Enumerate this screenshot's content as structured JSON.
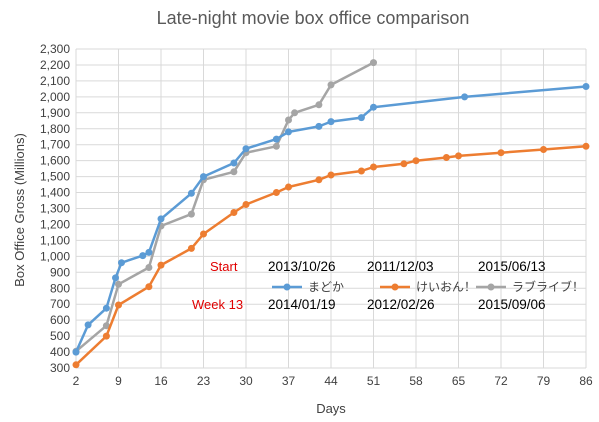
{
  "chart_data": {
    "type": "line",
    "title": "Late-night movie box office comparison",
    "xlabel": "Days",
    "ylabel": "Box Office Gross (Millions)",
    "xlim": [
      2,
      86
    ],
    "ylim": [
      300,
      2300
    ],
    "x_ticks": [
      2,
      9,
      16,
      23,
      30,
      37,
      44,
      51,
      58,
      65,
      72,
      79,
      86
    ],
    "y_ticks": [
      300,
      400,
      500,
      600,
      700,
      800,
      900,
      1000,
      1100,
      1200,
      1300,
      1400,
      1500,
      1600,
      1700,
      1800,
      1900,
      2000,
      2100,
      2200,
      2300
    ],
    "y_tick_labels": [
      "300",
      "400",
      "500",
      "600",
      "700",
      "800",
      "900",
      "1,000",
      "1,100",
      "1,200",
      "1,300",
      "1,400",
      "1,500",
      "1,600",
      "1,700",
      "1,800",
      "1,900",
      "2,000",
      "2,100",
      "2,200",
      "2,300"
    ],
    "grid": true,
    "series": [
      {
        "name": "まどか",
        "color": "#5b9bd5",
        "points": [
          [
            2,
            400
          ],
          [
            4,
            570
          ],
          [
            7,
            675
          ],
          [
            8.5,
            865
          ],
          [
            9.5,
            960
          ],
          [
            13,
            1005
          ],
          [
            14,
            1025
          ],
          [
            16,
            1235
          ],
          [
            21,
            1395
          ],
          [
            23,
            1500
          ],
          [
            28,
            1585
          ],
          [
            30,
            1675
          ],
          [
            35,
            1735
          ],
          [
            37,
            1780
          ],
          [
            42,
            1815
          ],
          [
            44,
            1845
          ],
          [
            49,
            1870
          ],
          [
            51,
            1935
          ],
          [
            66,
            2000
          ],
          [
            86,
            2065
          ]
        ]
      },
      {
        "name": "けいおん！",
        "color": "#ed7d31",
        "points": [
          [
            2,
            320
          ],
          [
            7,
            500
          ],
          [
            9,
            695
          ],
          [
            14,
            810
          ],
          [
            16,
            945
          ],
          [
            21,
            1050
          ],
          [
            23,
            1140
          ],
          [
            28,
            1275
          ],
          [
            30,
            1325
          ],
          [
            35,
            1400
          ],
          [
            37,
            1435
          ],
          [
            42,
            1480
          ],
          [
            44,
            1510
          ],
          [
            49,
            1535
          ],
          [
            51,
            1560
          ],
          [
            56,
            1580
          ],
          [
            58,
            1600
          ],
          [
            63,
            1620
          ],
          [
            65,
            1630
          ],
          [
            72,
            1650
          ],
          [
            79,
            1670
          ],
          [
            86,
            1690
          ]
        ]
      },
      {
        "name": "ラブライブ！",
        "color": "#a5a5a5",
        "points": [
          [
            2,
            405
          ],
          [
            7,
            565
          ],
          [
            9,
            825
          ],
          [
            14,
            930
          ],
          [
            16,
            1190
          ],
          [
            21,
            1265
          ],
          [
            23,
            1480
          ],
          [
            28,
            1530
          ],
          [
            30,
            1650
          ],
          [
            35,
            1690
          ],
          [
            37,
            1855
          ],
          [
            38,
            1900
          ],
          [
            42,
            1950
          ],
          [
            44,
            2075
          ],
          [
            51,
            2215
          ]
        ]
      }
    ],
    "legend": {
      "position": "center",
      "start_label": "Start",
      "week_label": "Week 13",
      "start_dates": [
        "2013/10/26",
        "2011/12/03",
        "2015/06/13"
      ],
      "week13_dates": [
        "2014/01/19",
        "2012/02/26",
        "2015/09/06"
      ]
    }
  }
}
